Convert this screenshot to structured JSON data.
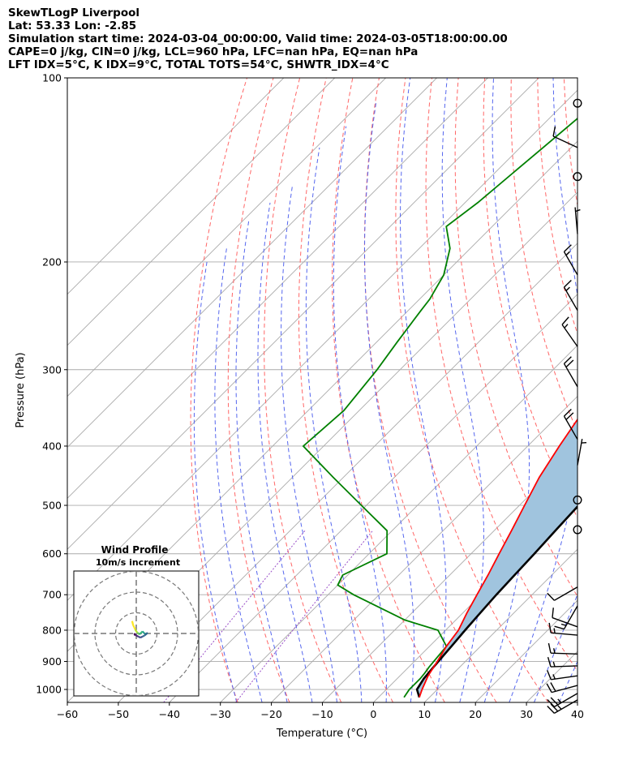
{
  "header": {
    "title": "SkewTLogP Liverpool",
    "location": "Lat: 53.33   Lon: -2.85",
    "times": "Simulation start time: 2024-03-04_00:00:00, Valid time: 2024-03-05T18:00:00.00",
    "indices1": "CAPE=0 j/kg, CIN=0 j/kg, LCL=960 hPa, LFC=nan hPa, EQ=nan hPa",
    "indices2": "LFT IDX=5°C, K IDX=9°C, TOTAL TOTS=54°C, SHWTR_IDX=4°C"
  },
  "chart_data": {
    "type": "line",
    "subtype": "skew-t log-p",
    "xlabel": "Temperature (°C)",
    "ylabel": "Pressure (hPa)",
    "xlim": [
      -60,
      40
    ],
    "ylim_hpa": [
      1050,
      100
    ],
    "x_ticks": [
      -60,
      -50,
      -40,
      -30,
      -20,
      -10,
      0,
      10,
      20,
      30,
      40
    ],
    "y_ticks": [
      1000,
      900,
      800,
      700,
      600,
      500,
      400,
      300,
      200,
      100
    ],
    "grid": true,
    "colors": {
      "temperature": "#ff0000",
      "dewpoint": "#008000",
      "parcel": "#000000",
      "fill": "#a0c4de",
      "dry_adiabats": "#ff6666",
      "moist_adiabats": "#5566ee",
      "isotherms": "#aaaaaa",
      "mixing_ratio": "#9a4fc8"
    },
    "series": [
      {
        "key": "temperature",
        "points": [
          [
            1030,
            8
          ],
          [
            1000,
            7
          ],
          [
            950,
            5.5
          ],
          [
            900,
            4.5
          ],
          [
            850,
            3.3
          ],
          [
            800,
            2.5
          ],
          [
            750,
            0.8
          ],
          [
            700,
            -0.8
          ],
          [
            650,
            -2.5
          ],
          [
            600,
            -4.5
          ],
          [
            550,
            -6.6
          ],
          [
            500,
            -9
          ],
          [
            450,
            -11.6
          ],
          [
            400,
            -13.8
          ],
          [
            350,
            -16
          ],
          [
            300,
            -19.5
          ],
          [
            250,
            -23.5
          ],
          [
            225,
            -25
          ],
          [
            200,
            -26.5
          ],
          [
            170,
            -28
          ],
          [
            150,
            -29
          ],
          [
            140,
            -31
          ],
          [
            125,
            -36
          ],
          [
            115,
            -40.5
          ],
          [
            108,
            -44.5
          ],
          [
            100,
            -48.5
          ]
        ]
      },
      {
        "key": "dewpoint",
        "points": [
          [
            1030,
            5
          ],
          [
            1000,
            4.5
          ],
          [
            960,
            4.5
          ],
          [
            940,
            4.3
          ],
          [
            920,
            4
          ],
          [
            850,
            3.3
          ],
          [
            800,
            -1.5
          ],
          [
            770,
            -10
          ],
          [
            700,
            -25
          ],
          [
            675,
            -30
          ],
          [
            650,
            -31
          ],
          [
            600,
            -26.5
          ],
          [
            550,
            -31
          ],
          [
            500,
            -41
          ],
          [
            450,
            -52
          ],
          [
            400,
            -64
          ],
          [
            350,
            -63
          ],
          [
            300,
            -64.5
          ],
          [
            270,
            -66
          ],
          [
            240,
            -67.5
          ],
          [
            230,
            -68
          ],
          [
            210,
            -70
          ],
          [
            190,
            -74
          ],
          [
            175,
            -79
          ],
          [
            160,
            -77.5
          ],
          [
            130,
            -75.5
          ],
          [
            100,
            -73
          ]
        ]
      },
      {
        "key": "parcel",
        "points": [
          [
            1030,
            8
          ],
          [
            1000,
            6
          ],
          [
            960,
            5.2
          ],
          [
            900,
            4.7
          ],
          [
            850,
            4.3
          ],
          [
            800,
            3.8
          ],
          [
            750,
            3.4
          ],
          [
            700,
            3
          ],
          [
            650,
            2.7
          ],
          [
            600,
            2.4
          ],
          [
            550,
            2
          ],
          [
            500,
            1.6
          ],
          [
            450,
            1.4
          ],
          [
            400,
            1.5
          ],
          [
            350,
            1.8
          ],
          [
            300,
            2.6
          ],
          [
            250,
            4
          ],
          [
            200,
            6
          ],
          [
            150,
            10
          ],
          [
            120,
            13.5
          ],
          [
            100,
            16.8
          ]
        ]
      }
    ],
    "wind_barbs": [
      {
        "p": 1040,
        "speed_kt": 25,
        "dir_deg": 240
      },
      {
        "p": 1015,
        "speed_kt": 25,
        "dir_deg": 240
      },
      {
        "p": 985,
        "speed_kt": 20,
        "dir_deg": 255
      },
      {
        "p": 950,
        "speed_kt": 15,
        "dir_deg": 262
      },
      {
        "p": 915,
        "speed_kt": 15,
        "dir_deg": 268
      },
      {
        "p": 875,
        "speed_kt": 15,
        "dir_deg": 272
      },
      {
        "p": 815,
        "speed_kt": 15,
        "dir_deg": 275
      },
      {
        "p": 790,
        "speed_kt": 10,
        "dir_deg": 290
      },
      {
        "p": 730,
        "speed_kt": 15,
        "dir_deg": 210
      },
      {
        "p": 680,
        "speed_kt": 10,
        "dir_deg": 240
      },
      {
        "p": 548,
        "speed_kt": 0,
        "dir_deg": 0
      },
      {
        "p": 490,
        "speed_kt": 0,
        "dir_deg": 0
      },
      {
        "p": 430,
        "speed_kt": 5,
        "dir_deg": 10
      },
      {
        "p": 390,
        "speed_kt": 20,
        "dir_deg": 330
      },
      {
        "p": 320,
        "speed_kt": 20,
        "dir_deg": 330
      },
      {
        "p": 275,
        "speed_kt": 15,
        "dir_deg": 325
      },
      {
        "p": 240,
        "speed_kt": 15,
        "dir_deg": 330
      },
      {
        "p": 210,
        "speed_kt": 15,
        "dir_deg": 330
      },
      {
        "p": 180,
        "speed_kt": 5,
        "dir_deg": 355
      },
      {
        "p": 145,
        "speed_kt": 0,
        "dir_deg": 0
      },
      {
        "p": 130,
        "speed_kt": 10,
        "dir_deg": 295
      },
      {
        "p": 110,
        "speed_kt": 0,
        "dir_deg": 0
      }
    ],
    "hodograph": {
      "title": "Wind Profile",
      "subtitle": "10m/s increment",
      "ring_increment_ms": 10,
      "points": [
        [
          -2,
          6
        ],
        [
          -1.5,
          4
        ],
        [
          -1,
          3
        ],
        [
          -0.5,
          2
        ],
        [
          0,
          1
        ],
        [
          0.5,
          0.5
        ],
        [
          1,
          0
        ],
        [
          1.5,
          -0.5
        ],
        [
          2,
          0
        ],
        [
          2.5,
          0.5
        ],
        [
          3,
          1
        ],
        [
          3.5,
          0.5
        ],
        [
          4,
          0
        ],
        [
          4.5,
          -0.5
        ],
        [
          5,
          0
        ],
        [
          5.5,
          0.3
        ],
        [
          4,
          -1
        ],
        [
          3,
          -1.5
        ],
        [
          2,
          -2
        ],
        [
          1,
          -1.5
        ],
        [
          0,
          -1
        ],
        [
          -1,
          0
        ],
        [
          -0.5,
          -1
        ]
      ]
    }
  }
}
